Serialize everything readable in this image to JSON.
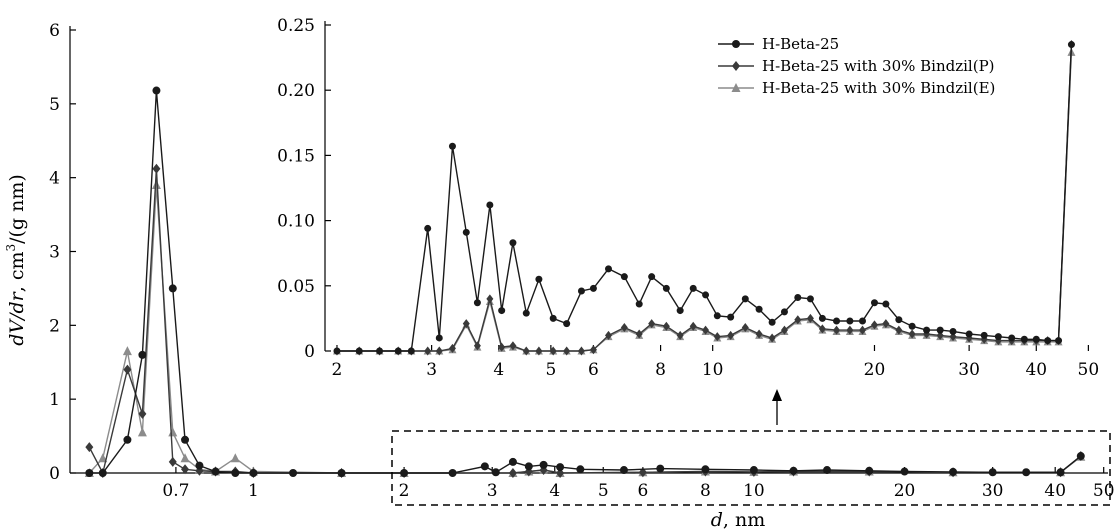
{
  "chart_data": [
    {
      "id": "main",
      "type": "line",
      "xscale": "log",
      "xlabel_var": "d",
      "xlabel_unit": ", nm",
      "ylabel_parts": [
        "dV/dr",
        ", cm",
        "3",
        "/(g nm)"
      ],
      "xlim": [
        0.43,
        51
      ],
      "ylim": [
        0,
        6
      ],
      "xticks": [
        0.7,
        1,
        2,
        3,
        4,
        5,
        6,
        8,
        10,
        20,
        30,
        40,
        50
      ],
      "xticklabels": [
        "0.7",
        "1",
        "2",
        "3",
        "4",
        "5",
        "6",
        "8",
        "10",
        "20",
        "30",
        "40",
        "50"
      ],
      "yticks": [
        0,
        1,
        2,
        3,
        4,
        5,
        6
      ],
      "yticklabels": [
        "0",
        "1",
        "2",
        "3",
        "4",
        "5",
        "6"
      ],
      "series": [
        {
          "name": "H-Beta-25",
          "color": "#1a1a1a",
          "marker": "circle",
          "points": [
            [
              0.47,
              0.0
            ],
            [
              0.5,
              0.0
            ],
            [
              0.56,
              0.45
            ],
            [
              0.6,
              1.6
            ],
            [
              0.64,
              5.18
            ],
            [
              0.69,
              2.5
            ],
            [
              0.73,
              0.45
            ],
            [
              0.78,
              0.1
            ],
            [
              0.84,
              0.02
            ],
            [
              0.92,
              0.0
            ],
            [
              1.0,
              0.0
            ],
            [
              1.2,
              0.0
            ],
            [
              1.5,
              0.0
            ],
            [
              2.0,
              0.0
            ],
            [
              2.5,
              0.0
            ],
            [
              2.9,
              0.09
            ],
            [
              3.05,
              0.01
            ],
            [
              3.3,
              0.15
            ],
            [
              3.55,
              0.09
            ],
            [
              3.8,
              0.11
            ],
            [
              4.1,
              0.08
            ],
            [
              4.5,
              0.05
            ],
            [
              5.5,
              0.04
            ],
            [
              6.5,
              0.06
            ],
            [
              8,
              0.05
            ],
            [
              10,
              0.04
            ],
            [
              12,
              0.03
            ],
            [
              14,
              0.04
            ],
            [
              17,
              0.03
            ],
            [
              20,
              0.02
            ],
            [
              25,
              0.015
            ],
            [
              30,
              0.01
            ],
            [
              35,
              0.01
            ],
            [
              41,
              0.01
            ],
            [
              45,
              0.23
            ]
          ]
        },
        {
          "name": "H-Beta-25 with 30% Bindzil(P)",
          "color": "#3a3a3a",
          "marker": "diamond",
          "points": [
            [
              0.47,
              0.35
            ],
            [
              0.5,
              0.0
            ],
            [
              0.56,
              1.4
            ],
            [
              0.6,
              0.8
            ],
            [
              0.64,
              4.12
            ],
            [
              0.69,
              0.15
            ],
            [
              0.73,
              0.05
            ],
            [
              0.78,
              0.03
            ],
            [
              0.84,
              0.02
            ],
            [
              0.92,
              0.02
            ],
            [
              1.0,
              0.0
            ],
            [
              1.5,
              0.0
            ],
            [
              2.0,
              0.0
            ],
            [
              3.3,
              0.0
            ],
            [
              3.55,
              0.02
            ],
            [
              3.8,
              0.04
            ],
            [
              4.1,
              0.0
            ],
            [
              6,
              0.01
            ],
            [
              8,
              0.02
            ],
            [
              10,
              0.015
            ],
            [
              12,
              0.02
            ],
            [
              17,
              0.02
            ],
            [
              25,
              0.01
            ],
            [
              41,
              0.01
            ],
            [
              45,
              0.23
            ]
          ]
        },
        {
          "name": "H-Beta-25 with 30% Bindzil(E)",
          "color": "#8c8c8c",
          "marker": "triangle",
          "points": [
            [
              0.47,
              0.0
            ],
            [
              0.5,
              0.2
            ],
            [
              0.56,
              1.65
            ],
            [
              0.6,
              0.55
            ],
            [
              0.64,
              3.9
            ],
            [
              0.69,
              0.55
            ],
            [
              0.73,
              0.2
            ],
            [
              0.78,
              0.05
            ],
            [
              0.84,
              0.02
            ],
            [
              0.92,
              0.2
            ],
            [
              1.0,
              0.02
            ],
            [
              1.5,
              0.0
            ],
            [
              2.0,
              0.0
            ],
            [
              3.3,
              0.0
            ],
            [
              3.55,
              0.02
            ],
            [
              3.8,
              0.04
            ],
            [
              4.1,
              0.0
            ],
            [
              6,
              0.01
            ],
            [
              8,
              0.02
            ],
            [
              10,
              0.015
            ],
            [
              12,
              0.02
            ],
            [
              17,
              0.02
            ],
            [
              25,
              0.01
            ],
            [
              41,
              0.01
            ],
            [
              45,
              0.22
            ]
          ]
        }
      ]
    },
    {
      "id": "inset",
      "type": "line",
      "xscale": "log",
      "xlim": [
        1.9,
        51
      ],
      "ylim": [
        0,
        0.25
      ],
      "xticks": [
        2,
        3,
        4,
        5,
        6,
        8,
        10,
        20,
        30,
        40,
        50
      ],
      "xticklabels": [
        "2",
        "3",
        "4",
        "5",
        "6",
        "8",
        "10",
        "20",
        "30",
        "40",
        "50"
      ],
      "yticks": [
        0,
        0.05,
        0.1,
        0.15,
        0.2,
        0.25
      ],
      "yticklabels": [
        "0",
        "0.05",
        "0.10",
        "0.15",
        "0.20",
        "0.25"
      ],
      "legend_position": "top-right",
      "series": [
        {
          "name": "H-Beta-25",
          "color": "#1a1a1a",
          "marker": "circle",
          "points": [
            [
              2.0,
              0
            ],
            [
              2.2,
              0
            ],
            [
              2.4,
              0
            ],
            [
              2.6,
              0
            ],
            [
              2.75,
              0
            ],
            [
              2.95,
              0.094
            ],
            [
              3.1,
              0.01
            ],
            [
              3.28,
              0.157
            ],
            [
              3.48,
              0.091
            ],
            [
              3.65,
              0.037
            ],
            [
              3.85,
              0.112
            ],
            [
              4.05,
              0.031
            ],
            [
              4.25,
              0.083
            ],
            [
              4.5,
              0.029
            ],
            [
              4.75,
              0.055
            ],
            [
              5.05,
              0.025
            ],
            [
              5.35,
              0.021
            ],
            [
              5.7,
              0.046
            ],
            [
              6.0,
              0.048
            ],
            [
              6.4,
              0.063
            ],
            [
              6.85,
              0.057
            ],
            [
              7.3,
              0.036
            ],
            [
              7.7,
              0.057
            ],
            [
              8.2,
              0.048
            ],
            [
              8.7,
              0.031
            ],
            [
              9.2,
              0.048
            ],
            [
              9.7,
              0.043
            ],
            [
              10.2,
              0.027
            ],
            [
              10.8,
              0.026
            ],
            [
              11.5,
              0.04
            ],
            [
              12.2,
              0.032
            ],
            [
              12.9,
              0.022
            ],
            [
              13.6,
              0.03
            ],
            [
              14.4,
              0.041
            ],
            [
              15.2,
              0.04
            ],
            [
              16.0,
              0.025
            ],
            [
              17.0,
              0.023
            ],
            [
              18.0,
              0.023
            ],
            [
              19.0,
              0.023
            ],
            [
              20.0,
              0.037
            ],
            [
              21.0,
              0.036
            ],
            [
              22.2,
              0.024
            ],
            [
              23.5,
              0.019
            ],
            [
              25.0,
              0.016
            ],
            [
              26.5,
              0.016
            ],
            [
              28.0,
              0.015
            ],
            [
              30.0,
              0.013
            ],
            [
              32.0,
              0.012
            ],
            [
              34.0,
              0.011
            ],
            [
              36.0,
              0.01
            ],
            [
              38.0,
              0.009
            ],
            [
              40.0,
              0.009
            ],
            [
              42.0,
              0.008
            ],
            [
              44.0,
              0.008
            ],
            [
              46.5,
              0.235
            ]
          ]
        },
        {
          "name": "H-Beta-25 with 30% Bindzil(P)",
          "color": "#3a3a3a",
          "marker": "diamond",
          "points": [
            [
              2.0,
              0
            ],
            [
              2.2,
              0
            ],
            [
              2.4,
              0
            ],
            [
              2.6,
              0
            ],
            [
              2.75,
              0
            ],
            [
              2.95,
              0
            ],
            [
              3.1,
              0
            ],
            [
              3.28,
              0.002
            ],
            [
              3.48,
              0.021
            ],
            [
              3.65,
              0.004
            ],
            [
              3.85,
              0.04
            ],
            [
              4.05,
              0.003
            ],
            [
              4.25,
              0.004
            ],
            [
              4.5,
              0
            ],
            [
              4.75,
              0
            ],
            [
              5.05,
              0
            ],
            [
              5.35,
              0
            ],
            [
              5.7,
              0
            ],
            [
              6.0,
              0.001
            ],
            [
              6.4,
              0.012
            ],
            [
              6.85,
              0.018
            ],
            [
              7.3,
              0.013
            ],
            [
              7.7,
              0.021
            ],
            [
              8.2,
              0.019
            ],
            [
              8.7,
              0.012
            ],
            [
              9.2,
              0.019
            ],
            [
              9.7,
              0.016
            ],
            [
              10.2,
              0.011
            ],
            [
              10.8,
              0.012
            ],
            [
              11.5,
              0.018
            ],
            [
              12.2,
              0.013
            ],
            [
              12.9,
              0.01
            ],
            [
              13.6,
              0.016
            ],
            [
              14.4,
              0.024
            ],
            [
              15.2,
              0.025
            ],
            [
              16.0,
              0.017
            ],
            [
              17.0,
              0.016
            ],
            [
              18.0,
              0.016
            ],
            [
              19.0,
              0.016
            ],
            [
              20.0,
              0.02
            ],
            [
              21.0,
              0.021
            ],
            [
              22.2,
              0.016
            ],
            [
              23.5,
              0.013
            ],
            [
              25.0,
              0.013
            ],
            [
              26.5,
              0.012
            ],
            [
              28.0,
              0.011
            ],
            [
              30.0,
              0.01
            ],
            [
              32.0,
              0.009
            ],
            [
              34.0,
              0.008
            ],
            [
              36.0,
              0.008
            ],
            [
              38.0,
              0.008
            ],
            [
              40.0,
              0.008
            ],
            [
              42.0,
              0.008
            ],
            [
              44.0,
              0.008
            ],
            [
              46.5,
              0.235
            ]
          ]
        },
        {
          "name": "H-Beta-25 with 30% Bindzil(E)",
          "color": "#8c8c8c",
          "marker": "triangle",
          "points": [
            [
              2.0,
              0
            ],
            [
              2.2,
              0
            ],
            [
              2.4,
              0
            ],
            [
              2.6,
              0
            ],
            [
              2.75,
              0
            ],
            [
              2.95,
              0
            ],
            [
              3.1,
              0
            ],
            [
              3.28,
              0.001
            ],
            [
              3.48,
              0.02
            ],
            [
              3.65,
              0.003
            ],
            [
              3.85,
              0.038
            ],
            [
              4.05,
              0.002
            ],
            [
              4.25,
              0.003
            ],
            [
              4.5,
              0
            ],
            [
              4.75,
              0
            ],
            [
              5.05,
              0
            ],
            [
              5.35,
              0
            ],
            [
              5.7,
              0
            ],
            [
              6.0,
              0.001
            ],
            [
              6.4,
              0.011
            ],
            [
              6.85,
              0.017
            ],
            [
              7.3,
              0.012
            ],
            [
              7.7,
              0.02
            ],
            [
              8.2,
              0.018
            ],
            [
              8.7,
              0.011
            ],
            [
              9.2,
              0.018
            ],
            [
              9.7,
              0.015
            ],
            [
              10.2,
              0.01
            ],
            [
              10.8,
              0.011
            ],
            [
              11.5,
              0.017
            ],
            [
              12.2,
              0.012
            ],
            [
              12.9,
              0.009
            ],
            [
              13.6,
              0.015
            ],
            [
              14.4,
              0.023
            ],
            [
              15.2,
              0.024
            ],
            [
              16.0,
              0.016
            ],
            [
              17.0,
              0.015
            ],
            [
              18.0,
              0.015
            ],
            [
              19.0,
              0.015
            ],
            [
              20.0,
              0.019
            ],
            [
              21.0,
              0.02
            ],
            [
              22.2,
              0.015
            ],
            [
              23.5,
              0.012
            ],
            [
              25.0,
              0.012
            ],
            [
              26.5,
              0.011
            ],
            [
              28.0,
              0.01
            ],
            [
              30.0,
              0.009
            ],
            [
              32.0,
              0.008
            ],
            [
              34.0,
              0.007
            ],
            [
              36.0,
              0.007
            ],
            [
              38.0,
              0.007
            ],
            [
              40.0,
              0.007
            ],
            [
              42.0,
              0.007
            ],
            [
              44.0,
              0.007
            ],
            [
              46.5,
              0.229
            ]
          ]
        }
      ]
    }
  ]
}
